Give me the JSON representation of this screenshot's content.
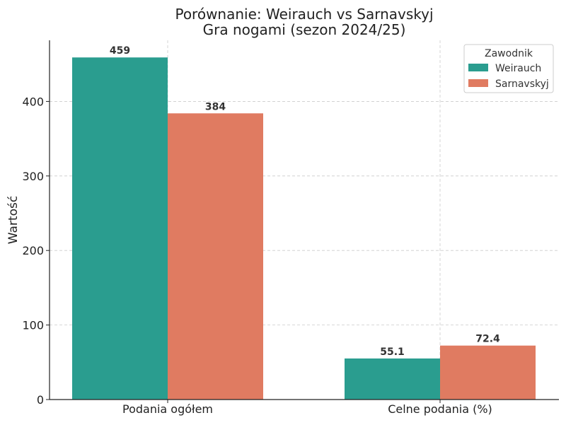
{
  "chart_data": {
    "type": "bar",
    "title": "Porównanie: Weirauch vs Sarnavskyj",
    "subtitle": "Gra nogami (sezon 2024/25)",
    "xlabel": "",
    "ylabel": "Wartość",
    "categories": [
      "Podania ogółem",
      "Celne podania (%)"
    ],
    "series": [
      {
        "name": "Weirauch",
        "values": [
          459,
          55.1
        ],
        "labels": [
          "459",
          "55.1"
        ],
        "color": "#2a9d8f"
      },
      {
        "name": "Sarnavskyj",
        "values": [
          384,
          72.4
        ],
        "labels": [
          "384",
          "72.4"
        ],
        "color": "#e07b61"
      }
    ],
    "ylim": [
      0,
      482
    ],
    "yticks": [
      0,
      100,
      200,
      300,
      400
    ],
    "ytick_labels": [
      "0",
      "100",
      "200",
      "300",
      "400"
    ],
    "grid": true,
    "legend": {
      "title": "Zawodnik",
      "placement": "top-right"
    }
  }
}
